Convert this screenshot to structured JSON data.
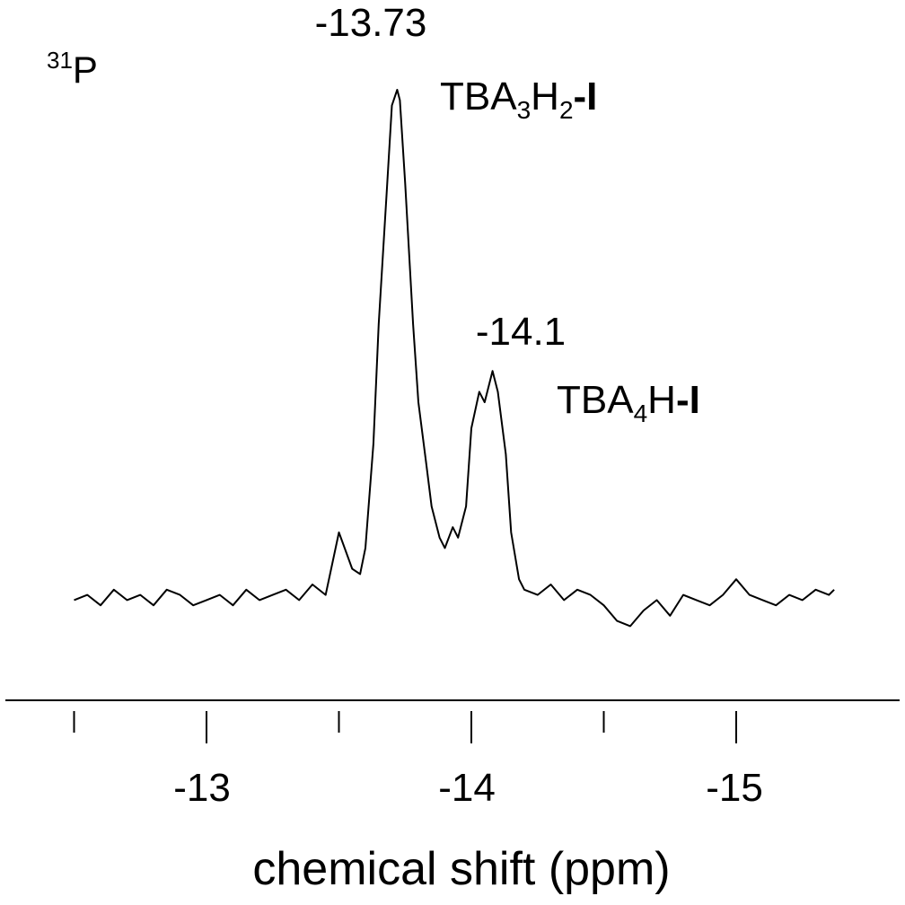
{
  "chart_data": {
    "type": "line",
    "nucleus": {
      "mass": "31",
      "symbol": "P"
    },
    "xlabel": "chemical shift (ppm)",
    "xlim": [
      -12.49,
      -15.67
    ],
    "x_reversed": true,
    "grid": false,
    "x_ticks_major": [
      -13,
      -14,
      -15
    ],
    "x_ticks_minor": [
      -12.5,
      -13.5,
      -14.5
    ],
    "tick_labels": [
      "-13",
      "-14",
      "-15"
    ],
    "series": [
      {
        "x": [
          -12.5,
          -12.55,
          -12.6,
          -12.65,
          -12.7,
          -12.75,
          -12.8,
          -12.85,
          -12.9,
          -12.95,
          -13.0,
          -13.05,
          -13.1,
          -13.15,
          -13.2,
          -13.25,
          -13.3,
          -13.35,
          -13.4,
          -13.45,
          -13.5,
          -13.55,
          -13.58,
          -13.6,
          -13.63,
          -13.65,
          -13.68,
          -13.7,
          -13.72,
          -13.73,
          -13.75,
          -13.78,
          -13.8,
          -13.83,
          -13.85,
          -13.88,
          -13.9,
          -13.93,
          -13.95,
          -13.98,
          -14.0,
          -14.03,
          -14.05,
          -14.08,
          -14.1,
          -14.13,
          -14.15,
          -14.18,
          -14.2,
          -14.25,
          -14.3,
          -14.35,
          -14.4,
          -14.45,
          -14.5,
          -14.55,
          -14.6,
          -14.65,
          -14.7,
          -14.75,
          -14.8,
          -14.85,
          -14.9,
          -14.95,
          -15.0,
          -15.05,
          -15.1,
          -15.15,
          -15.2,
          -15.25,
          -15.3,
          -15.35,
          -15.37
        ],
        "y": [
          0.02,
          0.03,
          0.01,
          0.04,
          0.02,
          0.03,
          0.01,
          0.04,
          0.03,
          0.01,
          0.02,
          0.03,
          0.01,
          0.04,
          0.02,
          0.03,
          0.04,
          0.02,
          0.05,
          0.03,
          0.15,
          0.08,
          0.07,
          0.12,
          0.32,
          0.55,
          0.8,
          0.97,
          1.0,
          0.98,
          0.82,
          0.55,
          0.4,
          0.28,
          0.2,
          0.14,
          0.12,
          0.16,
          0.14,
          0.2,
          0.35,
          0.42,
          0.4,
          0.46,
          0.42,
          0.3,
          0.15,
          0.06,
          0.04,
          0.03,
          0.05,
          0.02,
          0.04,
          0.03,
          0.01,
          -0.02,
          -0.03,
          0.0,
          0.02,
          -0.01,
          0.03,
          0.02,
          0.01,
          0.03,
          0.06,
          0.03,
          0.02,
          0.01,
          0.03,
          0.02,
          0.04,
          0.03,
          0.04
        ]
      }
    ],
    "annotations": [
      {
        "shift": "-13.73",
        "compound": {
          "base": "TBA",
          "sub1": "3",
          "mid": "H",
          "sub2": "2",
          "dash": "-",
          "bold": "I"
        }
      },
      {
        "shift": "-14.1",
        "compound": {
          "base": "TBA",
          "sub1": "4",
          "mid": "H",
          "sub2": "",
          "dash": "-",
          "bold": "I"
        }
      }
    ]
  }
}
